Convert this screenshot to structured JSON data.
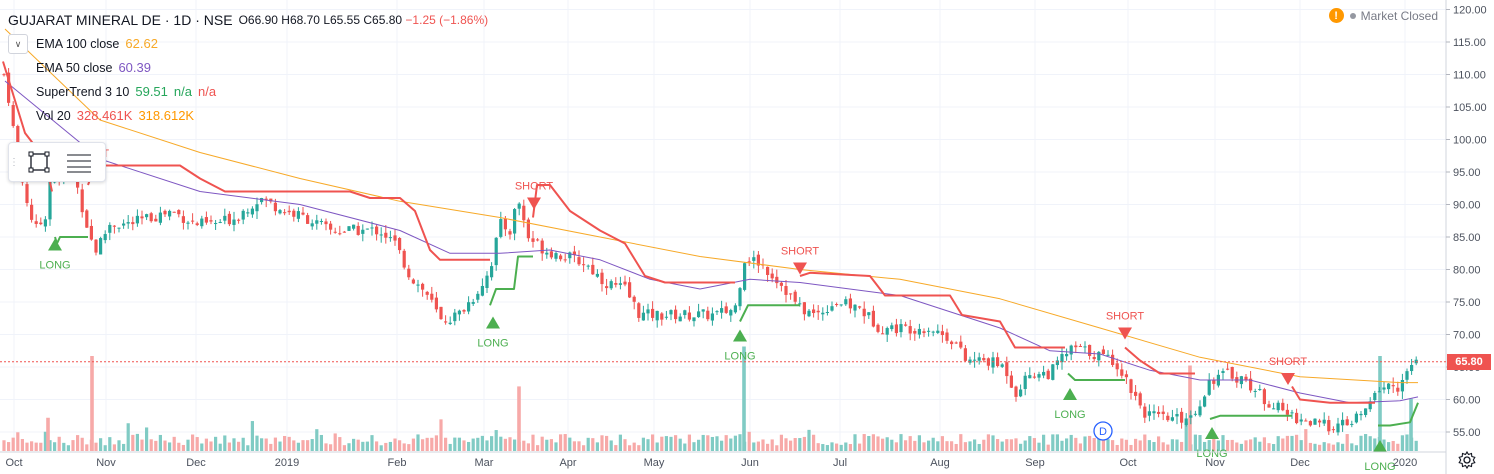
{
  "header": {
    "symbol": "GUJARAT MINERAL DE · 1D · NSE",
    "open": "O66.90",
    "high": "H68.70",
    "low": "L65.55",
    "close": "C65.80",
    "change": "−1.25 (−1.86%)"
  },
  "status": {
    "badge": "!",
    "label": "Market Closed"
  },
  "indicators": [
    {
      "name": "EMA 100 close",
      "value": "62.62",
      "color": "#f7a928"
    },
    {
      "name": "EMA 50 close",
      "value": "60.39",
      "color": "#7e57c2"
    },
    {
      "name": "SuperTrend 3 10",
      "value": "59.51",
      "value2": "n/a",
      "value3": "n/a",
      "color": "#26a65b",
      "color2": "#ef5350"
    },
    {
      "name": "Vol 20",
      "value": "328.461K",
      "value2": "318.612K",
      "color": "#ef5350",
      "color2": "#ff9800"
    }
  ],
  "last_price": "65.80",
  "drawing_tools": [
    "rectangle-icon",
    "lines-icon"
  ],
  "chart_data": {
    "type": "candlestick",
    "y_axis": {
      "min": 53,
      "max": 121,
      "ticks": [
        55,
        60,
        65,
        70,
        75,
        80,
        85,
        90,
        95,
        100,
        105,
        110,
        115,
        120
      ],
      "tick_labels": [
        "55.00",
        "60.00",
        "65.00",
        "70.00",
        "75.00",
        "80.00",
        "85.00",
        "90.00",
        "95.00",
        "100.00",
        "105.00",
        "110.00",
        "115.00",
        "120.00"
      ]
    },
    "x_axis": {
      "labels": [
        "Oct",
        "Nov",
        "Dec",
        "2019",
        "Feb",
        "Mar",
        "Apr",
        "May",
        "Jun",
        "Jul",
        "Aug",
        "Sep",
        "Oct",
        "Nov",
        "Dec",
        "2020"
      ],
      "label_days": [
        14,
        106,
        196,
        287,
        397,
        484,
        568,
        654,
        750,
        840,
        940,
        1035,
        1128,
        1215,
        1300,
        1405
      ]
    },
    "close_series": [
      {
        "x": 5,
        "y": 110
      },
      {
        "x": 12,
        "y": 103
      },
      {
        "x": 20,
        "y": 95
      },
      {
        "x": 28,
        "y": 90
      },
      {
        "x": 35,
        "y": 86
      },
      {
        "x": 45,
        "y": 88
      },
      {
        "x": 52,
        "y": 96
      },
      {
        "x": 60,
        "y": 93
      },
      {
        "x": 70,
        "y": 97
      },
      {
        "x": 80,
        "y": 91
      },
      {
        "x": 90,
        "y": 85
      },
      {
        "x": 96,
        "y": 83
      },
      {
        "x": 110,
        "y": 87
      },
      {
        "x": 130,
        "y": 87
      },
      {
        "x": 150,
        "y": 88
      },
      {
        "x": 172,
        "y": 89
      },
      {
        "x": 195,
        "y": 87
      },
      {
        "x": 215,
        "y": 87
      },
      {
        "x": 235,
        "y": 88
      },
      {
        "x": 260,
        "y": 91
      },
      {
        "x": 285,
        "y": 89
      },
      {
        "x": 305,
        "y": 88
      },
      {
        "x": 330,
        "y": 86
      },
      {
        "x": 355,
        "y": 86
      },
      {
        "x": 380,
        "y": 86
      },
      {
        "x": 395,
        "y": 84
      },
      {
        "x": 410,
        "y": 79
      },
      {
        "x": 428,
        "y": 76
      },
      {
        "x": 441,
        "y": 72
      },
      {
        "x": 458,
        "y": 73
      },
      {
        "x": 475,
        "y": 76
      },
      {
        "x": 490,
        "y": 80
      },
      {
        "x": 500,
        "y": 87
      },
      {
        "x": 510,
        "y": 86
      },
      {
        "x": 518,
        "y": 91
      },
      {
        "x": 528,
        "y": 85
      },
      {
        "x": 545,
        "y": 83
      },
      {
        "x": 565,
        "y": 82
      },
      {
        "x": 585,
        "y": 81
      },
      {
        "x": 605,
        "y": 78
      },
      {
        "x": 625,
        "y": 77
      },
      {
        "x": 640,
        "y": 73
      },
      {
        "x": 665,
        "y": 73
      },
      {
        "x": 690,
        "y": 73
      },
      {
        "x": 715,
        "y": 73
      },
      {
        "x": 735,
        "y": 74
      },
      {
        "x": 745,
        "y": 82
      },
      {
        "x": 760,
        "y": 81
      },
      {
        "x": 780,
        "y": 78
      },
      {
        "x": 800,
        "y": 74
      },
      {
        "x": 815,
        "y": 73
      },
      {
        "x": 835,
        "y": 75
      },
      {
        "x": 860,
        "y": 74
      },
      {
        "x": 880,
        "y": 71
      },
      {
        "x": 905,
        "y": 71
      },
      {
        "x": 930,
        "y": 71
      },
      {
        "x": 955,
        "y": 69
      },
      {
        "x": 965,
        "y": 66
      },
      {
        "x": 985,
        "y": 66
      },
      {
        "x": 1005,
        "y": 65
      },
      {
        "x": 1015,
        "y": 61
      },
      {
        "x": 1030,
        "y": 64
      },
      {
        "x": 1050,
        "y": 64
      },
      {
        "x": 1065,
        "y": 67
      },
      {
        "x": 1075,
        "y": 68
      },
      {
        "x": 1095,
        "y": 67
      },
      {
        "x": 1115,
        "y": 66
      },
      {
        "x": 1130,
        "y": 62
      },
      {
        "x": 1145,
        "y": 58
      },
      {
        "x": 1160,
        "y": 57
      },
      {
        "x": 1180,
        "y": 57
      },
      {
        "x": 1195,
        "y": 58
      },
      {
        "x": 1210,
        "y": 63
      },
      {
        "x": 1228,
        "y": 64
      },
      {
        "x": 1245,
        "y": 63
      },
      {
        "x": 1265,
        "y": 60
      },
      {
        "x": 1285,
        "y": 58
      },
      {
        "x": 1300,
        "y": 57
      },
      {
        "x": 1320,
        "y": 56
      },
      {
        "x": 1345,
        "y": 56
      },
      {
        "x": 1365,
        "y": 58
      },
      {
        "x": 1380,
        "y": 62
      },
      {
        "x": 1400,
        "y": 62
      },
      {
        "x": 1415,
        "y": 66
      }
    ],
    "series": [
      {
        "name": "EMA 100 close",
        "color": "#f7a928",
        "points": [
          {
            "x": 5,
            "y": 117
          },
          {
            "x": 100,
            "y": 103
          },
          {
            "x": 200,
            "y": 98
          },
          {
            "x": 300,
            "y": 94
          },
          {
            "x": 400,
            "y": 90.5
          },
          {
            "x": 500,
            "y": 88
          },
          {
            "x": 600,
            "y": 85
          },
          {
            "x": 700,
            "y": 82
          },
          {
            "x": 800,
            "y": 80
          },
          {
            "x": 900,
            "y": 78.5
          },
          {
            "x": 1000,
            "y": 75.5
          },
          {
            "x": 1100,
            "y": 71
          },
          {
            "x": 1200,
            "y": 66.5
          },
          {
            "x": 1300,
            "y": 63.5
          },
          {
            "x": 1400,
            "y": 62.6
          },
          {
            "x": 1418,
            "y": 62.6
          }
        ]
      },
      {
        "name": "EMA 50 close",
        "color": "#7e57c2",
        "points": [
          {
            "x": 5,
            "y": 109
          },
          {
            "x": 100,
            "y": 97
          },
          {
            "x": 200,
            "y": 92
          },
          {
            "x": 300,
            "y": 90
          },
          {
            "x": 400,
            "y": 86
          },
          {
            "x": 450,
            "y": 82.5
          },
          {
            "x": 500,
            "y": 82.5
          },
          {
            "x": 550,
            "y": 83
          },
          {
            "x": 600,
            "y": 81.5
          },
          {
            "x": 650,
            "y": 78.5
          },
          {
            "x": 700,
            "y": 77
          },
          {
            "x": 750,
            "y": 78.5
          },
          {
            "x": 800,
            "y": 78
          },
          {
            "x": 900,
            "y": 76
          },
          {
            "x": 1000,
            "y": 71
          },
          {
            "x": 1050,
            "y": 67.5
          },
          {
            "x": 1100,
            "y": 67
          },
          {
            "x": 1150,
            "y": 64.5
          },
          {
            "x": 1200,
            "y": 63
          },
          {
            "x": 1250,
            "y": 63
          },
          {
            "x": 1300,
            "y": 61
          },
          {
            "x": 1350,
            "y": 59.5
          },
          {
            "x": 1400,
            "y": 59.8
          },
          {
            "x": 1418,
            "y": 60.4
          }
        ]
      },
      {
        "name": "SuperTrend down",
        "color": "#ef5350",
        "segments": [
          [
            {
              "x": 3,
              "y": 112
            },
            {
              "x": 15,
              "y": 106
            },
            {
              "x": 25,
              "y": 101
            },
            {
              "x": 45,
              "y": 97
            },
            {
              "x": 52,
              "y": 92
            }
          ],
          [
            {
              "x": 88,
              "y": 93
            },
            {
              "x": 95,
              "y": 96
            },
            {
              "x": 180,
              "y": 96
            },
            {
              "x": 200,
              "y": 94
            },
            {
              "x": 225,
              "y": 92
            },
            {
              "x": 350,
              "y": 92
            },
            {
              "x": 370,
              "y": 91
            },
            {
              "x": 400,
              "y": 91
            },
            {
              "x": 415,
              "y": 89
            },
            {
              "x": 430,
              "y": 83
            },
            {
              "x": 440,
              "y": 81.5
            },
            {
              "x": 490,
              "y": 81.5
            }
          ],
          [
            {
              "x": 533,
              "y": 88
            },
            {
              "x": 537,
              "y": 93
            },
            {
              "x": 550,
              "y": 93
            },
            {
              "x": 570,
              "y": 89
            },
            {
              "x": 600,
              "y": 86
            },
            {
              "x": 625,
              "y": 84
            },
            {
              "x": 645,
              "y": 79
            },
            {
              "x": 665,
              "y": 78
            },
            {
              "x": 735,
              "y": 78
            }
          ],
          [
            {
              "x": 800,
              "y": 79
            },
            {
              "x": 810,
              "y": 79.5
            },
            {
              "x": 870,
              "y": 79
            },
            {
              "x": 885,
              "y": 76
            },
            {
              "x": 950,
              "y": 76
            },
            {
              "x": 962,
              "y": 73
            },
            {
              "x": 1000,
              "y": 72
            },
            {
              "x": 1015,
              "y": 68
            },
            {
              "x": 1065,
              "y": 68
            }
          ],
          [
            {
              "x": 1125,
              "y": 68
            },
            {
              "x": 1140,
              "y": 66
            },
            {
              "x": 1160,
              "y": 64
            },
            {
              "x": 1195,
              "y": 64
            }
          ],
          [
            {
              "x": 1292,
              "y": 62
            },
            {
              "x": 1300,
              "y": 60
            },
            {
              "x": 1330,
              "y": 59.5
            },
            {
              "x": 1375,
              "y": 59.5
            }
          ]
        ]
      },
      {
        "name": "SuperTrend up",
        "color": "#4caf50",
        "segments": [
          [
            {
              "x": 55,
              "y": 85
            },
            {
              "x": 57,
              "y": 84
            },
            {
              "x": 60,
              "y": 85
            },
            {
              "x": 88,
              "y": 85
            }
          ],
          [
            {
              "x": 490,
              "y": 74.5
            },
            {
              "x": 496,
              "y": 77
            },
            {
              "x": 514,
              "y": 77
            },
            {
              "x": 518,
              "y": 82
            },
            {
              "x": 533,
              "y": 82
            }
          ],
          [
            {
              "x": 740,
              "y": 72
            },
            {
              "x": 748,
              "y": 74.5
            },
            {
              "x": 800,
              "y": 74.5
            }
          ],
          [
            {
              "x": 1068,
              "y": 64
            },
            {
              "x": 1075,
              "y": 63
            },
            {
              "x": 1125,
              "y": 63
            }
          ],
          [
            {
              "x": 1210,
              "y": 57
            },
            {
              "x": 1220,
              "y": 57.5
            },
            {
              "x": 1292,
              "y": 57.5
            }
          ],
          [
            {
              "x": 1378,
              "y": 56
            },
            {
              "x": 1390,
              "y": 56
            },
            {
              "x": 1410,
              "y": 56.5
            },
            {
              "x": 1418,
              "y": 59.5
            }
          ]
        ]
      }
    ],
    "signals": [
      {
        "type": "LONG",
        "x": 55,
        "price": 86,
        "color": "#4caf50"
      },
      {
        "type": "SHORT",
        "x": 90,
        "price": 93,
        "color": "#ef5350"
      },
      {
        "type": "LONG",
        "x": 493,
        "price": 74,
        "color": "#4caf50"
      },
      {
        "type": "SHORT",
        "x": 534,
        "price": 88,
        "color": "#ef5350"
      },
      {
        "type": "LONG",
        "x": 740,
        "price": 72,
        "color": "#4caf50"
      },
      {
        "type": "SHORT",
        "x": 800,
        "price": 78,
        "color": "#ef5350"
      },
      {
        "type": "LONG",
        "x": 1070,
        "price": 63,
        "color": "#4caf50"
      },
      {
        "type": "SHORT",
        "x": 1125,
        "price": 68,
        "color": "#ef5350"
      },
      {
        "type": "LONG",
        "x": 1212,
        "price": 57,
        "color": "#4caf50"
      },
      {
        "type": "SHORT",
        "x": 1288,
        "price": 61,
        "color": "#ef5350"
      },
      {
        "type": "LONG",
        "x": 1380,
        "price": 55,
        "color": "#4caf50"
      }
    ],
    "dividend_marker": {
      "label": "D",
      "x": 1103
    },
    "last_price_line": 65.8,
    "volume_spikes": [
      {
        "x": 92,
        "v": 1.0,
        "dir": "down"
      },
      {
        "x": 519,
        "v": 0.68,
        "dir": "down"
      },
      {
        "x": 744,
        "v": 1.1,
        "dir": "up"
      },
      {
        "x": 1380,
        "v": 1.0,
        "dir": "up"
      },
      {
        "x": 1411,
        "v": 0.55,
        "dir": "up"
      },
      {
        "x": 48,
        "v": 0.35,
        "dir": "down"
      },
      {
        "x": 1190,
        "v": 0.9,
        "dir": "down"
      }
    ],
    "colors": {
      "up": "#26a69a",
      "down": "#ef5350",
      "vol_up": "#80cbc4",
      "vol_down": "#f7a9a8",
      "grid": "#f0f3fa",
      "axis_text": "#4c525e"
    }
  }
}
